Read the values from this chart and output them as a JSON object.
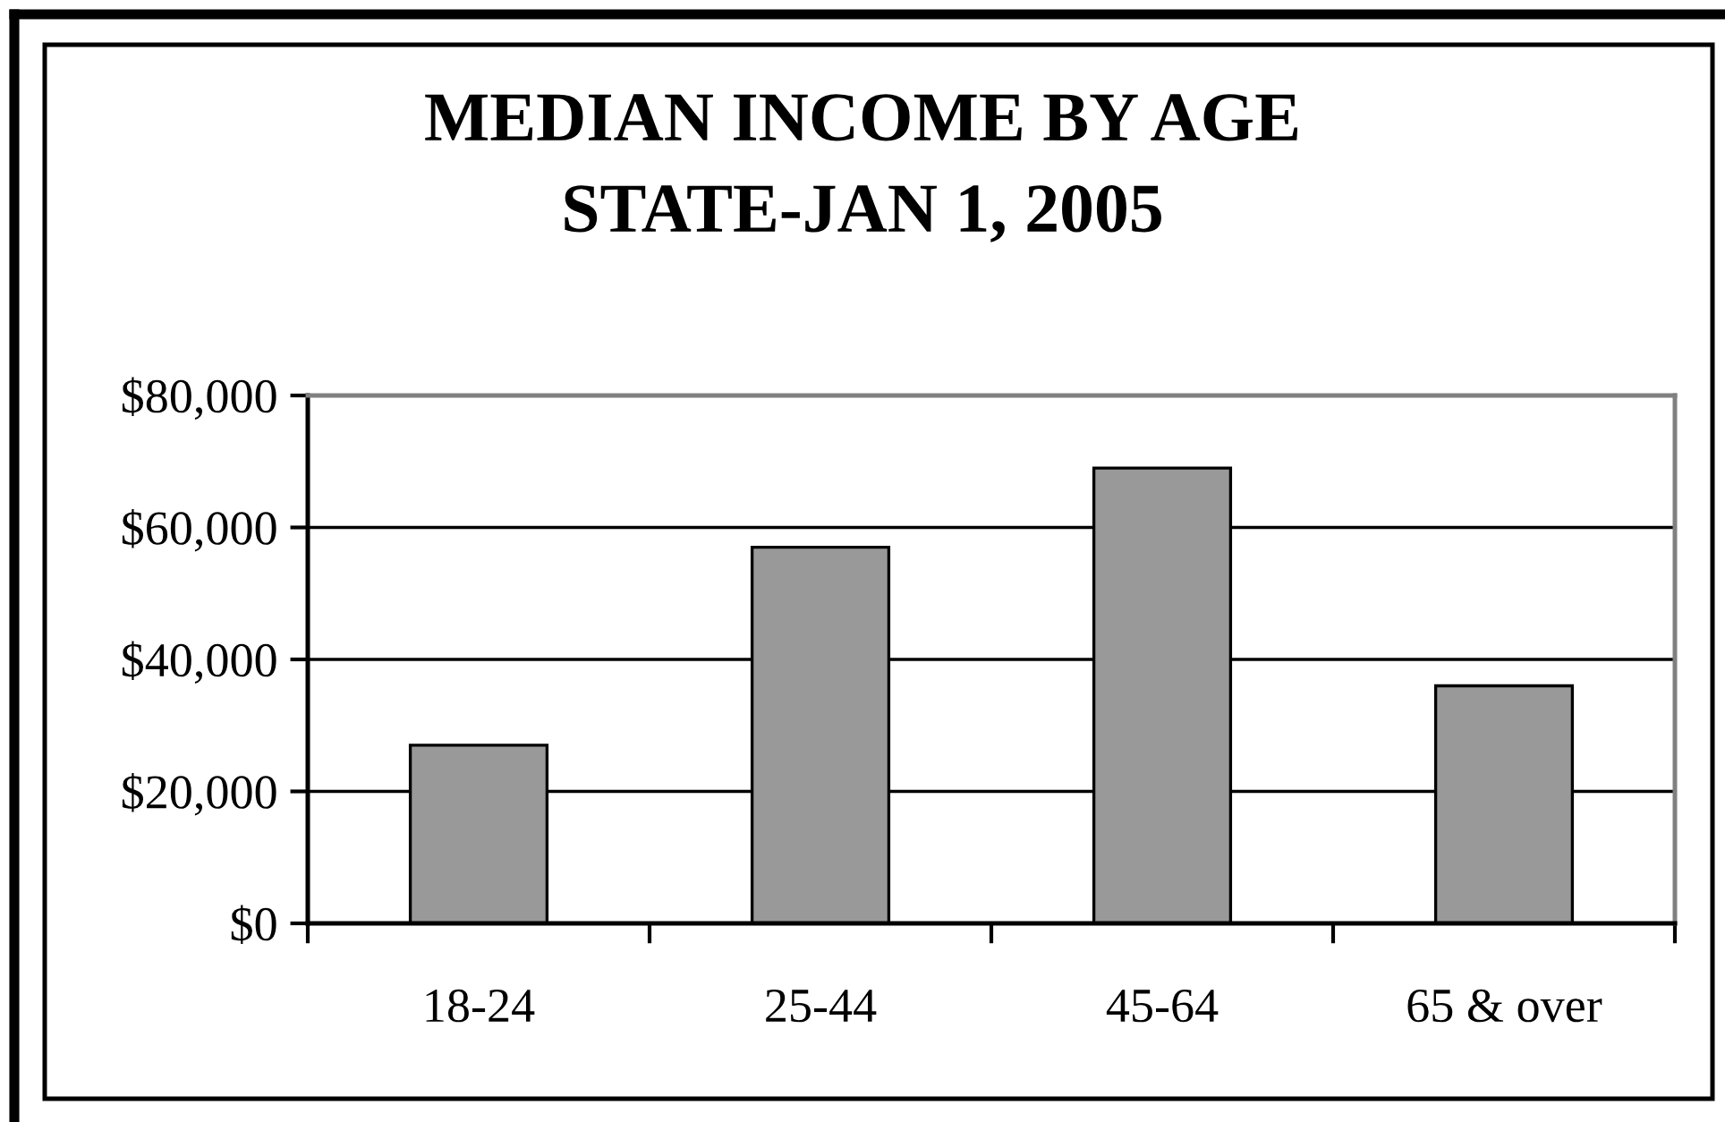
{
  "chart_data": {
    "type": "bar",
    "title": "MEDIAN INCOME BY AGE",
    "subtitle": "STATE-JAN 1, 2005",
    "categories": [
      "18-24",
      "25-44",
      "45-64",
      "65 & over"
    ],
    "values": [
      27000,
      57000,
      69000,
      36000
    ],
    "color": "#999999",
    "ylim": [
      0,
      80000
    ],
    "yticks": [
      {
        "value": 0,
        "label": "$0"
      },
      {
        "value": 20000,
        "label": "$20,000"
      },
      {
        "value": 40000,
        "label": "$40,000"
      },
      {
        "value": 60000,
        "label": "$60,000"
      },
      {
        "value": 80000,
        "label": "$80,000"
      }
    ],
    "grid": "y"
  }
}
